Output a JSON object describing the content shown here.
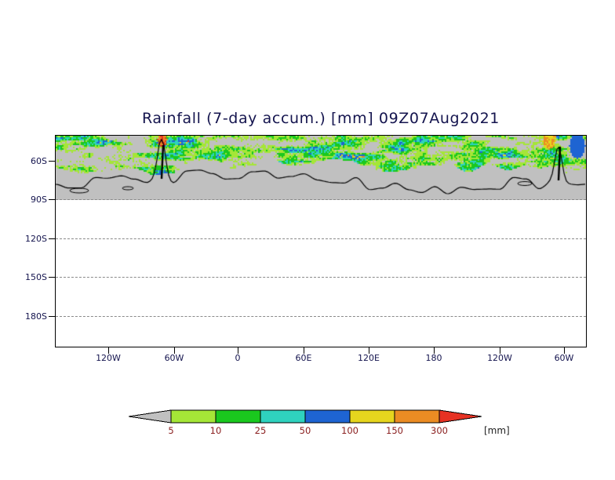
{
  "chart_data": {
    "type": "heatmap",
    "title": "Rainfall (7-day accum.) [mm] 09Z07Aug2021",
    "variable": "Rainfall (7-day accumulated)",
    "units": "mm",
    "valid_time": "09Z07Aug2021",
    "y_ticks": [
      "60S",
      "90S",
      "120S",
      "150S",
      "180S"
    ],
    "x_ticks": [
      "120W",
      "60W",
      "0",
      "60E",
      "120E",
      "180",
      "120W",
      "60W"
    ],
    "grid": "dashed horizontal gridlines",
    "legend_position": "bottom center",
    "legend": {
      "levels": [
        5,
        10,
        25,
        50,
        100,
        150,
        300
      ],
      "labels": [
        "5",
        "10",
        "25",
        "50",
        "100",
        "150",
        "300"
      ],
      "units_label": "[mm]",
      "colors": {
        "below": "#c0c0c0",
        "bands": [
          "#a5e637",
          "#1ac81e",
          "#2fd2be",
          "#1e64d2",
          "#e6d51e",
          "#eb8c23"
        ],
        "above": "#e63223"
      }
    }
  }
}
